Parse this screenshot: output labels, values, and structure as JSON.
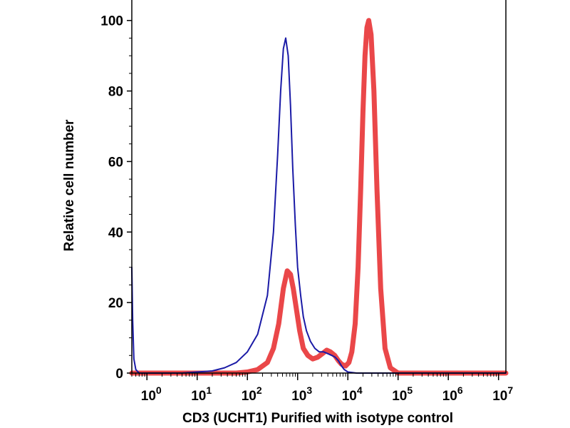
{
  "chart_data": {
    "type": "line",
    "title": "",
    "xlabel": "CD3 (UCHT1) Purified with isotype control",
    "ylabel": "Relative cell number",
    "x_scale": "log",
    "xlim": [
      0.5,
      14000000
    ],
    "ylim": [
      0,
      105
    ],
    "grid": false,
    "legend": "none",
    "x_ticks": [
      {
        "value": 1,
        "base": "10",
        "exp": "0"
      },
      {
        "value": 10,
        "base": "10",
        "exp": "1"
      },
      {
        "value": 100,
        "base": "10",
        "exp": "2"
      },
      {
        "value": 1000,
        "base": "10",
        "exp": "3"
      },
      {
        "value": 10000,
        "base": "10",
        "exp": "4"
      },
      {
        "value": 100000,
        "base": "10",
        "exp": "5"
      },
      {
        "value": 1000000,
        "base": "10",
        "exp": "6"
      },
      {
        "value": 10000000,
        "base": "10",
        "exp": "7"
      }
    ],
    "y_ticks": [
      {
        "value": 0,
        "label": "0"
      },
      {
        "value": 20,
        "label": "20"
      },
      {
        "value": 40,
        "label": "40"
      },
      {
        "value": 60,
        "label": "60"
      },
      {
        "value": 80,
        "label": "80"
      },
      {
        "value": 100,
        "label": "100"
      }
    ],
    "series": [
      {
        "color": "#1a1aa6",
        "stroke_width": 2,
        "x": [
          0.5,
          0.52,
          0.55,
          0.6,
          0.7,
          1,
          5,
          10,
          20,
          35,
          60,
          100,
          160,
          250,
          330,
          400,
          460,
          520,
          580,
          650,
          720,
          800,
          900,
          1000,
          1150,
          1300,
          1500,
          1800,
          2200,
          2700,
          3300,
          4000,
          4800,
          5600,
          6500,
          7500,
          8500,
          10000,
          15000,
          30000,
          100000,
          1000000,
          14000000
        ],
        "y": [
          30,
          15,
          4,
          1,
          0,
          0,
          0,
          0.3,
          0.6,
          1.5,
          3,
          6,
          11,
          22,
          40,
          62,
          80,
          92,
          95,
          90,
          76,
          58,
          42,
          30,
          22,
          16,
          12,
          9,
          7,
          6,
          6,
          5.5,
          5,
          4.5,
          3.5,
          2,
          1,
          0.3,
          0,
          0,
          0,
          0,
          0
        ]
      },
      {
        "color": "#e8373a",
        "stroke_width": 7,
        "x": [
          0.5,
          1,
          10,
          30,
          60,
          100,
          160,
          250,
          330,
          420,
          520,
          620,
          720,
          820,
          950,
          1100,
          1300,
          1600,
          2000,
          2500,
          3100,
          3800,
          4500,
          5500,
          6500,
          7500,
          9000,
          10500,
          12000,
          14000,
          16000,
          18000,
          20000,
          22000,
          24000,
          26000,
          29000,
          33000,
          38000,
          45000,
          55000,
          70000,
          100000,
          1000000,
          14000000
        ],
        "y": [
          0,
          0,
          0,
          0,
          0,
          0.3,
          1,
          3,
          7,
          14,
          24,
          29,
          28,
          24,
          18,
          12,
          7,
          5,
          4,
          4.5,
          5.5,
          6.5,
          6,
          5,
          3.5,
          2.5,
          2,
          3,
          6,
          14,
          30,
          52,
          74,
          90,
          98,
          100,
          96,
          80,
          52,
          24,
          7,
          1.5,
          0,
          0,
          0
        ]
      }
    ]
  }
}
